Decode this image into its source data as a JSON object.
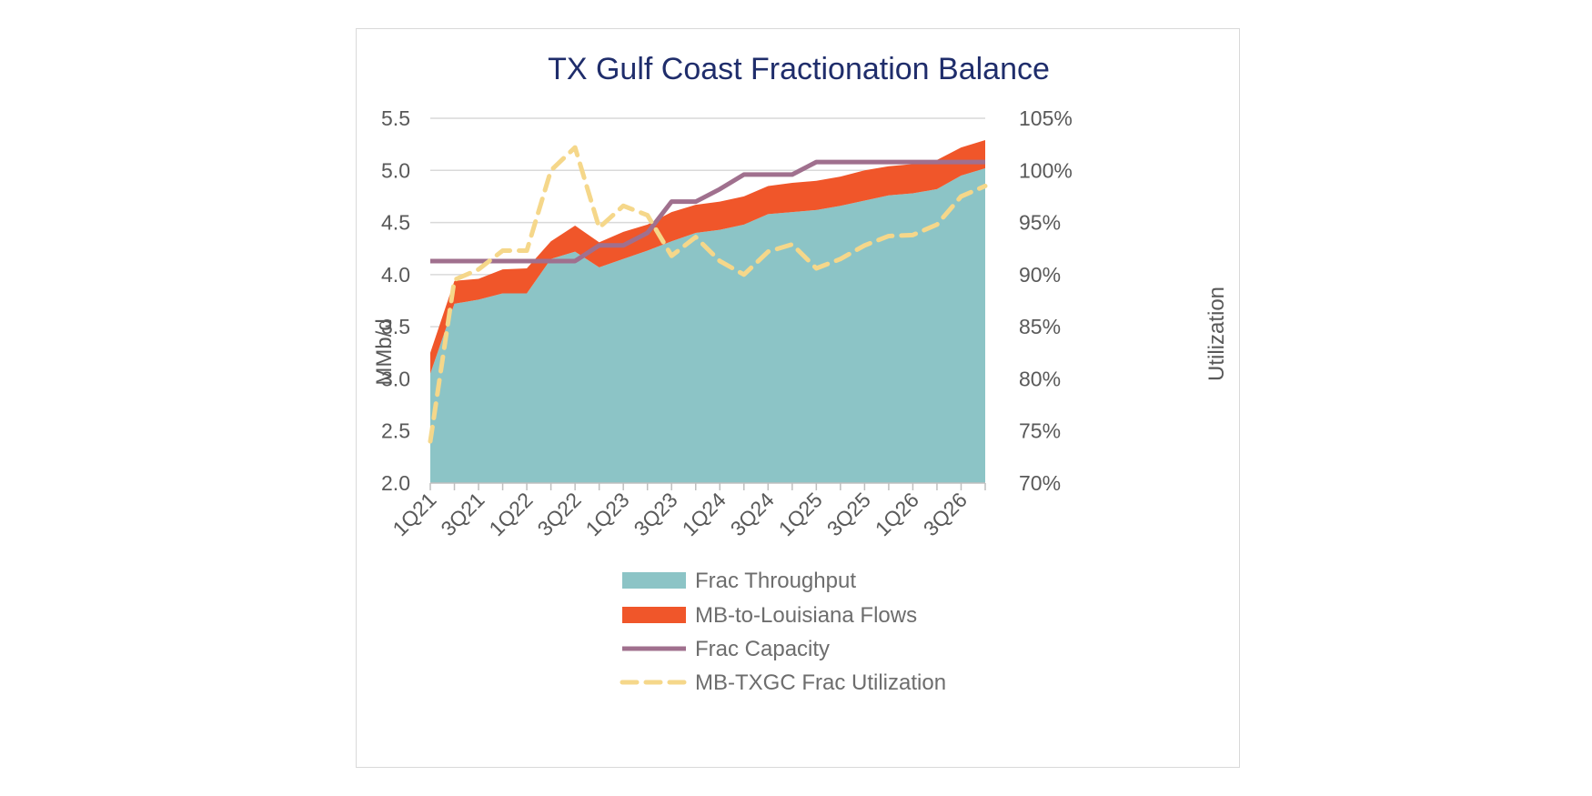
{
  "chart_data": {
    "type": "area",
    "title": "TX Gulf Coast Fractionation Balance",
    "ylabel": "MMb/d",
    "y2label": "Utilization",
    "ylim": [
      2.0,
      5.5
    ],
    "y2lim": [
      0.7,
      1.05
    ],
    "yticks": [
      "5.5",
      "5.0",
      "4.5",
      "4.0",
      "3.5",
      "3.0",
      "2.5",
      "2.0"
    ],
    "y2ticks": [
      "105%",
      "100%",
      "95%",
      "90%",
      "85%",
      "80%",
      "75%",
      "70%"
    ],
    "x": [
      "1Q21",
      "2Q21",
      "3Q21",
      "4Q21",
      "1Q22",
      "2Q22",
      "3Q22",
      "4Q22",
      "1Q23",
      "2Q23",
      "3Q23",
      "4Q23",
      "1Q24",
      "2Q24",
      "3Q24",
      "4Q24",
      "1Q25",
      "2Q25",
      "3Q25",
      "4Q25",
      "1Q26",
      "2Q26",
      "3Q26",
      "4Q26"
    ],
    "xtick_labels": [
      "1Q21",
      "3Q21",
      "1Q22",
      "3Q22",
      "1Q23",
      "3Q23",
      "1Q24",
      "3Q24",
      "1Q25",
      "3Q25",
      "1Q26",
      "3Q26"
    ],
    "grid": true,
    "legend": "bottom",
    "series": [
      {
        "name": "Frac Throughput",
        "type": "area",
        "axis": "left",
        "color": "#8cc4c6",
        "values": [
          3.05,
          3.72,
          3.76,
          3.82,
          3.82,
          4.15,
          4.22,
          4.07,
          4.15,
          4.23,
          4.32,
          4.4,
          4.43,
          4.48,
          4.58,
          4.6,
          4.62,
          4.66,
          4.71,
          4.76,
          4.78,
          4.82,
          4.95,
          5.02
        ]
      },
      {
        "name": "MB-to-Louisiana Flows",
        "type": "stacked-area",
        "axis": "left",
        "color": "#f0562a",
        "values": [
          0.2,
          0.22,
          0.2,
          0.23,
          0.24,
          0.17,
          0.25,
          0.24,
          0.26,
          0.25,
          0.28,
          0.27,
          0.27,
          0.27,
          0.27,
          0.28,
          0.28,
          0.28,
          0.29,
          0.28,
          0.28,
          0.28,
          0.27,
          0.27
        ]
      },
      {
        "name": "Frac Capacity",
        "type": "line",
        "axis": "left",
        "color": "#a0708e",
        "values": [
          4.13,
          4.13,
          4.13,
          4.13,
          4.13,
          4.13,
          4.13,
          4.28,
          4.28,
          4.4,
          4.7,
          4.7,
          4.82,
          4.96,
          4.96,
          4.96,
          5.08,
          5.08,
          5.08,
          5.08,
          5.08,
          5.08,
          5.08,
          5.08
        ]
      },
      {
        "name": "MB-TXGC Frac Utilization",
        "type": "line",
        "axis": "right",
        "dashed": true,
        "color": "#f5d78a",
        "values": [
          0.74,
          0.895,
          0.905,
          0.923,
          0.923,
          1.0,
          1.022,
          0.945,
          0.966,
          0.957,
          0.918,
          0.936,
          0.913,
          0.9,
          0.922,
          0.929,
          0.906,
          0.915,
          0.928,
          0.937,
          0.938,
          0.948,
          0.975,
          0.985
        ]
      }
    ]
  }
}
